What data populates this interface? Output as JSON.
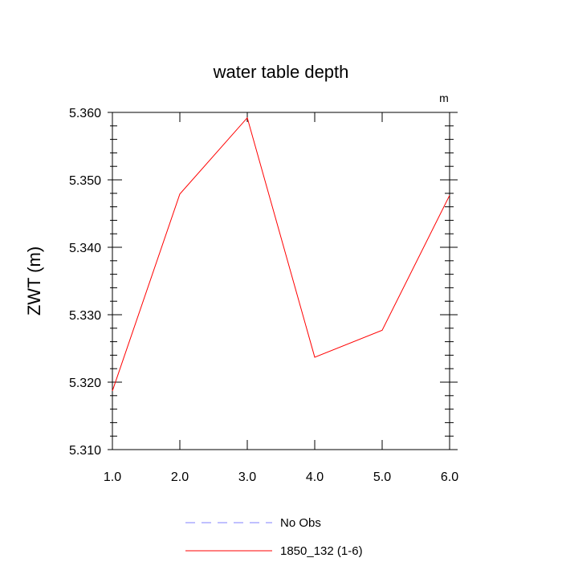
{
  "chart_data": {
    "type": "line",
    "title": "water table depth",
    "units_label": "m",
    "ylabel": "ZWT  (m)",
    "xlabel": "",
    "xlim": [
      1.0,
      6.0
    ],
    "ylim": [
      5.31,
      5.36
    ],
    "x_ticks": [
      "1.0",
      "2.0",
      "3.0",
      "4.0",
      "5.0",
      "6.0"
    ],
    "y_ticks": [
      "5.310",
      "5.320",
      "5.330",
      "5.340",
      "5.350",
      "5.360"
    ],
    "x": [
      1,
      2,
      3,
      4,
      5,
      6
    ],
    "series": [
      {
        "name": "1850_132 (1-6)",
        "color": "#ff0000",
        "values": [
          5.3187,
          5.3479,
          5.3592,
          5.3237,
          5.3277,
          5.3477
        ]
      }
    ],
    "legend": {
      "placement": "bottom",
      "entries": [
        {
          "label": "No Obs",
          "color": "#8080ff",
          "style": "dashed"
        },
        {
          "label": "1850_132 (1-6)",
          "color": "#ff0000",
          "style": "solid"
        }
      ]
    }
  }
}
